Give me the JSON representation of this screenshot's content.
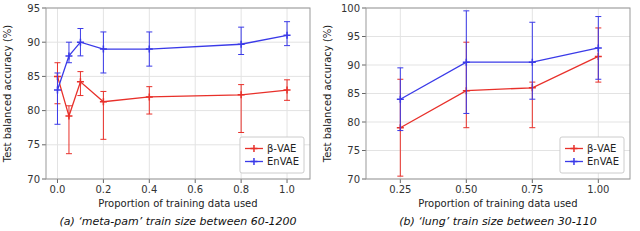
{
  "chart_data": [
    {
      "type": "line",
      "title": "(a) ‘meta-pam’ train size between 60-1200",
      "x_label": "Proportion of training data used",
      "y_label": "Test balanced accuracy (%)",
      "x": [
        0.0,
        0.05,
        0.1,
        0.2,
        0.4,
        0.8,
        1.0
      ],
      "series": [
        {
          "name": "β-VAE",
          "color": "#e8302a",
          "marker": "plus",
          "values": [
            85.0,
            79.2,
            84.2,
            81.3,
            82.0,
            82.3,
            83.0
          ],
          "error_low": [
            4.0,
            5.5,
            2.0,
            5.5,
            2.5,
            5.5,
            1.5
          ],
          "error_high": [
            2.0,
            1.5,
            1.5,
            1.5,
            1.5,
            1.5,
            1.5
          ]
        },
        {
          "name": "EnVAE",
          "color": "#3a3ae8",
          "marker": "plus",
          "values": [
            83.0,
            88.0,
            90.0,
            89.0,
            89.0,
            89.7,
            91.0
          ],
          "error_low": [
            5.0,
            1.0,
            2.0,
            3.5,
            2.5,
            1.5,
            1.5
          ],
          "error_high": [
            2.5,
            2.0,
            2.0,
            2.5,
            2.5,
            2.5,
            2.0
          ]
        }
      ],
      "xlim": [
        -0.05,
        1.1
      ],
      "xticks": [
        {
          "value": 0.0,
          "label": "0.0"
        },
        0.2,
        0.4,
        0.6,
        0.8,
        {
          "value": 1.0,
          "label": "1.0"
        }
      ],
      "ylim": [
        70,
        95
      ],
      "yticks": [
        70,
        75,
        80,
        85,
        90,
        95
      ],
      "grid": true,
      "legend": "lower right"
    },
    {
      "type": "line",
      "title": "(b) ‘lung’ train size between 30-110",
      "x_label": "Proportion of training data used",
      "y_label": "Test balanced accuracy (%)",
      "x": [
        0.25,
        0.5,
        0.75,
        1.0
      ],
      "series": [
        {
          "name": "β-VAE",
          "color": "#e8302a",
          "marker": "plus",
          "values": [
            79.0,
            85.5,
            86.0,
            91.5
          ],
          "error_low": [
            8.5,
            6.5,
            7.0,
            4.5
          ],
          "error_high": [
            8.5,
            8.5,
            1.0,
            5.0
          ]
        },
        {
          "name": "EnVAE",
          "color": "#3a3ae8",
          "marker": "plus",
          "values": [
            84.0,
            90.5,
            90.5,
            93.0
          ],
          "error_low": [
            5.5,
            9.0,
            6.5,
            5.5
          ],
          "error_high": [
            5.5,
            9.0,
            7.0,
            5.5
          ]
        }
      ],
      "xlim": [
        0.12,
        1.12
      ],
      "xticks": [
        0.25,
        {
          "value": 0.5,
          "label": "0.50"
        },
        0.75,
        {
          "value": 1.0,
          "label": "1.00"
        }
      ],
      "ylim": [
        70,
        100
      ],
      "yticks": [
        70,
        75,
        80,
        85,
        90,
        95,
        100
      ],
      "grid": true,
      "legend": "lower right"
    }
  ]
}
